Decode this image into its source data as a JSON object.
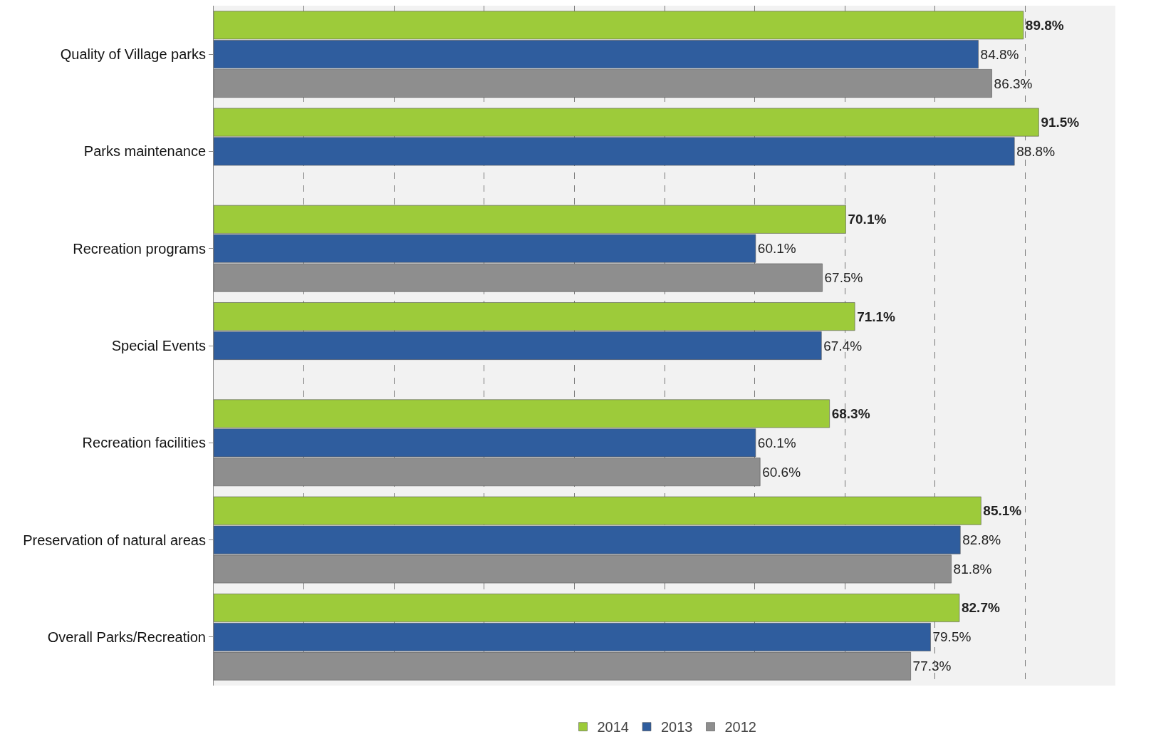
{
  "chart_data": {
    "type": "bar",
    "orientation": "horizontal",
    "categories": [
      "Quality of Village parks",
      "Parks maintenance",
      "Recreation programs",
      "Special Events",
      "Recreation facilities",
      "Preservation of natural areas",
      "Overall Parks/Recreation"
    ],
    "series": [
      {
        "name": "2014",
        "color": "#9dcb3a",
        "values": [
          89.8,
          91.5,
          70.1,
          71.1,
          68.3,
          85.1,
          82.7
        ],
        "value_labels": [
          "89.8%",
          "91.5%",
          "70.1%",
          "71.1%",
          "68.3%",
          "85.1%",
          "82.7%"
        ]
      },
      {
        "name": "2013",
        "color": "#2f5d9e",
        "values": [
          84.8,
          88.8,
          60.1,
          67.4,
          60.1,
          82.8,
          79.5
        ],
        "value_labels": [
          "84.8%",
          "88.8%",
          "60.1%",
          "67.4%",
          "60.1%",
          "82.8%",
          "79.5%"
        ]
      },
      {
        "name": "2012",
        "color": "#8e8e8e",
        "values": [
          86.3,
          null,
          67.5,
          null,
          60.6,
          81.8,
          77.3
        ],
        "value_labels": [
          "86.3%",
          null,
          "67.5%",
          null,
          "60.6%",
          "81.8%",
          "77.3%"
        ]
      }
    ],
    "xlim": [
      0,
      100
    ],
    "xticks": [
      {
        "value": 0,
        "label": null
      },
      {
        "value": 10,
        "label": null
      },
      {
        "value": 20,
        "label": null
      },
      {
        "value": 30,
        "label": null
      },
      {
        "value": 40,
        "label": null
      },
      {
        "value": 50,
        "label": null
      },
      {
        "value": 60,
        "label": null
      },
      {
        "value": 70,
        "label": null
      },
      {
        "value": 80,
        "label": null
      },
      {
        "value": 90,
        "label": null
      },
      {
        "value": 100,
        "label": null
      }
    ],
    "grid": "x",
    "legend": "bottom",
    "tick_labels": "y"
  }
}
